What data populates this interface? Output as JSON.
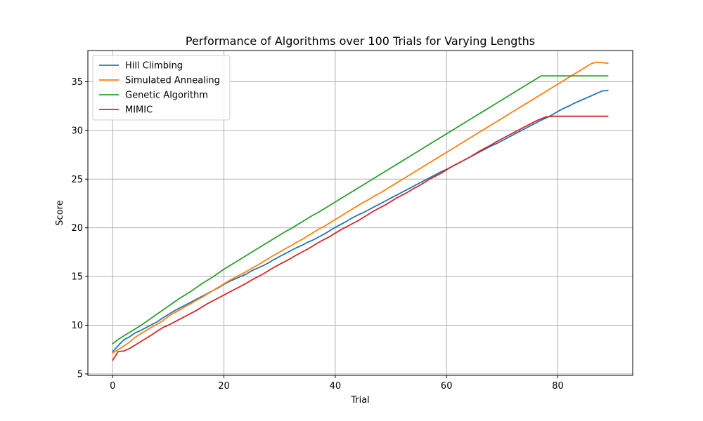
{
  "chart_data": {
    "type": "line",
    "title": "Performance of Algorithms over 100 Trials for Varying Lengths",
    "xlabel": "Trial",
    "ylabel": "Score",
    "xlim": [
      -4.45,
      93.45
    ],
    "ylim": [
      4.85,
      38.2
    ],
    "xticks": [
      0,
      20,
      40,
      60,
      80
    ],
    "yticks": [
      5,
      10,
      15,
      20,
      25,
      30,
      35
    ],
    "grid": true,
    "legend_position": "upper-left",
    "x": [
      0,
      1,
      2,
      3,
      4,
      5,
      6,
      7,
      8,
      9,
      10,
      11,
      12,
      13,
      14,
      15,
      16,
      17,
      18,
      19,
      20,
      21,
      22,
      23,
      24,
      25,
      26,
      27,
      28,
      29,
      30,
      31,
      32,
      33,
      34,
      35,
      36,
      37,
      38,
      39,
      40,
      41,
      42,
      43,
      44,
      45,
      46,
      47,
      48,
      49,
      50,
      51,
      52,
      53,
      54,
      55,
      56,
      57,
      58,
      59,
      60,
      61,
      62,
      63,
      64,
      65,
      66,
      67,
      68,
      69,
      70,
      71,
      72,
      73,
      74,
      75,
      76,
      77,
      78,
      79,
      80,
      81,
      82,
      83,
      84,
      85,
      86,
      87,
      88,
      89
    ],
    "series": [
      {
        "name": "Hill Climbing",
        "color": "#1f77b4",
        "values": [
          7.3,
          7.9,
          8.5,
          8.8,
          9.2,
          9.45,
          9.75,
          10.05,
          10.35,
          10.75,
          11.1,
          11.45,
          11.75,
          12.05,
          12.35,
          12.65,
          12.95,
          13.25,
          13.55,
          13.85,
          14.2,
          14.5,
          14.75,
          15.0,
          15.25,
          15.6,
          15.85,
          16.1,
          16.4,
          16.75,
          17.05,
          17.35,
          17.65,
          17.95,
          18.2,
          18.5,
          18.75,
          19.05,
          19.35,
          19.7,
          20.05,
          20.35,
          20.65,
          21.0,
          21.3,
          21.55,
          21.85,
          22.15,
          22.45,
          22.75,
          23.05,
          23.35,
          23.65,
          23.95,
          24.25,
          24.55,
          24.85,
          25.15,
          25.45,
          25.75,
          26.0,
          26.3,
          26.6,
          26.9,
          27.2,
          27.5,
          27.8,
          28.1,
          28.4,
          28.65,
          28.95,
          29.25,
          29.55,
          29.85,
          30.15,
          30.45,
          30.75,
          31.05,
          31.3,
          31.6,
          31.95,
          32.25,
          32.5,
          32.8,
          33.05,
          33.3,
          33.55,
          33.8,
          34.05,
          34.1
        ]
      },
      {
        "name": "Simulated Annealing",
        "color": "#ff7f0e",
        "values": [
          7.15,
          7.5,
          7.85,
          8.25,
          8.75,
          9.1,
          9.45,
          9.8,
          10.1,
          10.45,
          10.9,
          11.25,
          11.55,
          11.9,
          12.2,
          12.55,
          12.85,
          13.2,
          13.55,
          13.9,
          14.25,
          14.6,
          14.9,
          15.2,
          15.5,
          15.85,
          16.15,
          16.5,
          16.85,
          17.2,
          17.5,
          17.85,
          18.15,
          18.5,
          18.8,
          19.15,
          19.5,
          19.85,
          20.15,
          20.5,
          20.85,
          21.2,
          21.55,
          21.9,
          22.25,
          22.6,
          22.9,
          23.25,
          23.55,
          23.9,
          24.25,
          24.6,
          24.95,
          25.3,
          25.65,
          26.0,
          26.35,
          26.7,
          27.05,
          27.4,
          27.75,
          28.1,
          28.45,
          28.8,
          29.15,
          29.5,
          29.85,
          30.2,
          30.55,
          30.9,
          31.25,
          31.6,
          31.95,
          32.3,
          32.65,
          33.0,
          33.35,
          33.7,
          34.05,
          34.4,
          34.75,
          35.1,
          35.45,
          35.8,
          36.15,
          36.5,
          36.85,
          37.0,
          36.95,
          36.9
        ]
      },
      {
        "name": "Genetic Algorithm",
        "color": "#2ca02c",
        "values": [
          8.1,
          8.55,
          8.9,
          9.25,
          9.6,
          9.95,
          10.35,
          10.75,
          11.15,
          11.55,
          11.95,
          12.35,
          12.75,
          13.1,
          13.45,
          13.85,
          14.25,
          14.6,
          14.95,
          15.35,
          15.75,
          16.1,
          16.45,
          16.8,
          17.15,
          17.5,
          17.85,
          18.2,
          18.55,
          18.9,
          19.25,
          19.6,
          19.9,
          20.25,
          20.6,
          20.95,
          21.3,
          21.6,
          21.95,
          22.3,
          22.65,
          23.0,
          23.35,
          23.7,
          24.05,
          24.4,
          24.75,
          25.1,
          25.45,
          25.8,
          26.15,
          26.5,
          26.85,
          27.2,
          27.55,
          27.9,
          28.25,
          28.6,
          28.95,
          29.3,
          29.65,
          30.0,
          30.35,
          30.7,
          31.05,
          31.4,
          31.75,
          32.1,
          32.45,
          32.8,
          33.15,
          33.5,
          33.85,
          34.2,
          34.55,
          34.9,
          35.25,
          35.6,
          35.6,
          35.6,
          35.6,
          35.6,
          35.6,
          35.6,
          35.6,
          35.6,
          35.6,
          35.6,
          35.6,
          35.6
        ]
      },
      {
        "name": "MIMIC",
        "color": "#d62728",
        "values": [
          6.4,
          7.3,
          7.35,
          7.6,
          7.95,
          8.3,
          8.65,
          9.0,
          9.4,
          9.75,
          10.0,
          10.3,
          10.6,
          10.9,
          11.2,
          11.5,
          11.85,
          12.2,
          12.5,
          12.8,
          13.1,
          13.4,
          13.7,
          14.0,
          14.3,
          14.65,
          14.95,
          15.25,
          15.6,
          15.95,
          16.25,
          16.55,
          16.85,
          17.2,
          17.5,
          17.8,
          18.15,
          18.5,
          18.8,
          19.1,
          19.45,
          19.8,
          20.1,
          20.4,
          20.7,
          21.05,
          21.4,
          21.75,
          22.05,
          22.35,
          22.7,
          23.05,
          23.35,
          23.65,
          24.0,
          24.3,
          24.65,
          25.0,
          25.3,
          25.6,
          25.95,
          26.3,
          26.6,
          26.9,
          27.2,
          27.55,
          27.9,
          28.2,
          28.5,
          28.85,
          29.15,
          29.45,
          29.75,
          30.05,
          30.35,
          30.65,
          30.95,
          31.2,
          31.4,
          31.45,
          31.45,
          31.45,
          31.45,
          31.45,
          31.45,
          31.45,
          31.45,
          31.45,
          31.45,
          31.45
        ]
      }
    ]
  }
}
